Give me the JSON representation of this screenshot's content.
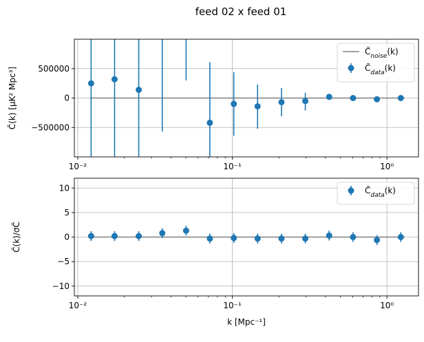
{
  "figure_title": "feed 02 x feed 01",
  "colors": {
    "data": "#1f77b4",
    "noise": "#808080",
    "grid": "#b0b0b0",
    "axis": "#000000"
  },
  "chart_data": [
    {
      "type": "scatter",
      "xscale": "log",
      "xlim": [
        0.0095,
        1.6
      ],
      "ylim": [
        -1000000,
        1000000
      ],
      "ylabel": "C̃(k) [μK² Mpc³]",
      "xlabel": "",
      "grid": true,
      "legend": "top-right",
      "yticks": [
        -500000,
        0,
        500000
      ],
      "ytick_labels": [
        "−500000",
        "0",
        "500000"
      ],
      "xticks": [
        0.01,
        0.1,
        1
      ],
      "xtick_labels": [
        "10⁻²",
        "10⁻¹",
        "10⁰"
      ],
      "series": [
        {
          "name": "C̃noise(k)",
          "label_main": "C̃",
          "label_sub": "noise",
          "label_tail": "(k)",
          "kind": "line",
          "x": [
            0.012,
            1.3
          ],
          "y": [
            0,
            0
          ]
        },
        {
          "name": "C̃data(k)",
          "label_main": "C̃",
          "label_sub": "data",
          "label_tail": "(k)",
          "kind": "errorbar",
          "x": [
            0.0122,
            0.0173,
            0.0248,
            0.0352,
            0.0502,
            0.0715,
            0.1022,
            0.1456,
            0.2079,
            0.2964,
            0.4229,
            0.6034,
            0.8614,
            1.2293
          ],
          "y": [
            250000,
            320000,
            140000,
            null,
            null,
            -420000,
            -100000,
            -140000,
            -70000,
            -50000,
            20000,
            0,
            -20000,
            0
          ],
          "lo": [
            -1000000,
            -1000000,
            -1000000,
            -570000,
            300000,
            -1000000,
            -640000,
            -520000,
            -310000,
            -210000,
            -30000,
            -25000,
            -40000,
            -40000
          ],
          "hi": [
            1000000,
            1000000,
            1000000,
            1000000,
            1000000,
            610000,
            440000,
            230000,
            170000,
            90000,
            70000,
            25000,
            10000,
            40000
          ]
        }
      ]
    },
    {
      "type": "scatter",
      "xscale": "log",
      "xlim": [
        0.0095,
        1.6
      ],
      "ylim": [
        -12,
        12
      ],
      "ylabel": "C̃(k)/σC̃",
      "xlabel": "k [Mpc⁻¹]",
      "grid": true,
      "legend": "top-right",
      "yticks": [
        -10,
        -5,
        0,
        5,
        10
      ],
      "ytick_labels": [
        "−10",
        "−5",
        "0",
        "5",
        "10"
      ],
      "xticks": [
        0.01,
        0.1,
        1
      ],
      "xtick_labels": [
        "10⁻²",
        "10⁻¹",
        "10⁰"
      ],
      "series": [
        {
          "name": "zero-line",
          "kind": "line",
          "x": [
            0.012,
            1.3
          ],
          "y": [
            0,
            0
          ]
        },
        {
          "name": "C̃data(k)",
          "label_main": "C̃",
          "label_sub": "data",
          "label_tail": "(k)",
          "kind": "errorbar",
          "x": [
            0.0122,
            0.0173,
            0.0248,
            0.0352,
            0.0502,
            0.0715,
            0.1022,
            0.1456,
            0.2079,
            0.2964,
            0.4229,
            0.6034,
            0.8614,
            1.2293
          ],
          "y": [
            0.2,
            0.2,
            0.2,
            0.8,
            1.3,
            -0.3,
            -0.2,
            -0.3,
            -0.3,
            -0.3,
            0.3,
            0.0,
            -0.6,
            0.0
          ],
          "lo": [
            -0.8,
            -0.8,
            -0.8,
            -0.2,
            0.3,
            -1.3,
            -1.2,
            -1.3,
            -1.3,
            -1.3,
            -0.7,
            -1.0,
            -1.6,
            -1.0
          ],
          "hi": [
            1.2,
            1.2,
            1.2,
            1.8,
            2.3,
            0.7,
            0.8,
            0.7,
            0.7,
            0.7,
            1.3,
            1.0,
            0.4,
            1.0
          ]
        }
      ]
    }
  ]
}
